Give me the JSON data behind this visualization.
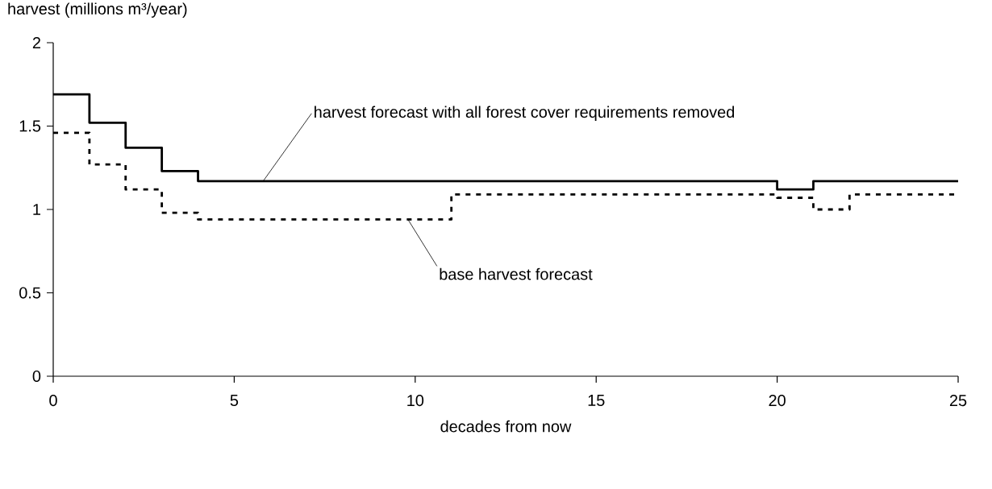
{
  "chart_data": {
    "type": "step",
    "xlabel": "decades from now",
    "ylabel": "harvest (millions m³/year)",
    "x": [
      0,
      1,
      2,
      3,
      4,
      5,
      6,
      7,
      8,
      9,
      10,
      11,
      12,
      13,
      14,
      15,
      16,
      17,
      18,
      19,
      20,
      21,
      22,
      23,
      24,
      25
    ],
    "xlim": [
      0,
      25
    ],
    "xticks": [
      0,
      5,
      10,
      15,
      20,
      25
    ],
    "ylim": [
      0,
      2
    ],
    "yticks": [
      0,
      0.5,
      1,
      1.5,
      2
    ],
    "series": [
      {
        "color": "#000000",
        "line_style": "solid",
        "values": [
          1.69,
          1.52,
          1.37,
          1.23,
          1.17,
          1.17,
          1.17,
          1.17,
          1.17,
          1.17,
          1.17,
          1.17,
          1.17,
          1.17,
          1.17,
          1.17,
          1.17,
          1.17,
          1.17,
          1.17,
          1.12,
          1.17,
          1.17,
          1.17,
          1.17,
          1.17
        ]
      },
      {
        "color": "#000000",
        "line_style": "dotted",
        "values": [
          1.46,
          1.27,
          1.12,
          0.98,
          0.94,
          0.94,
          0.94,
          0.94,
          0.94,
          0.94,
          0.94,
          1.09,
          1.09,
          1.09,
          1.09,
          1.09,
          1.09,
          1.09,
          1.09,
          1.09,
          1.07,
          1.0,
          1.09,
          1.09,
          1.09,
          1.09
        ]
      }
    ],
    "annotations": [
      {
        "text": "harvest forecast with all forest cover requirements removed",
        "x": 5.8,
        "y": 1.17
      },
      {
        "text": "base harvest forecast",
        "x": 9.8,
        "y": 0.94
      }
    ]
  }
}
